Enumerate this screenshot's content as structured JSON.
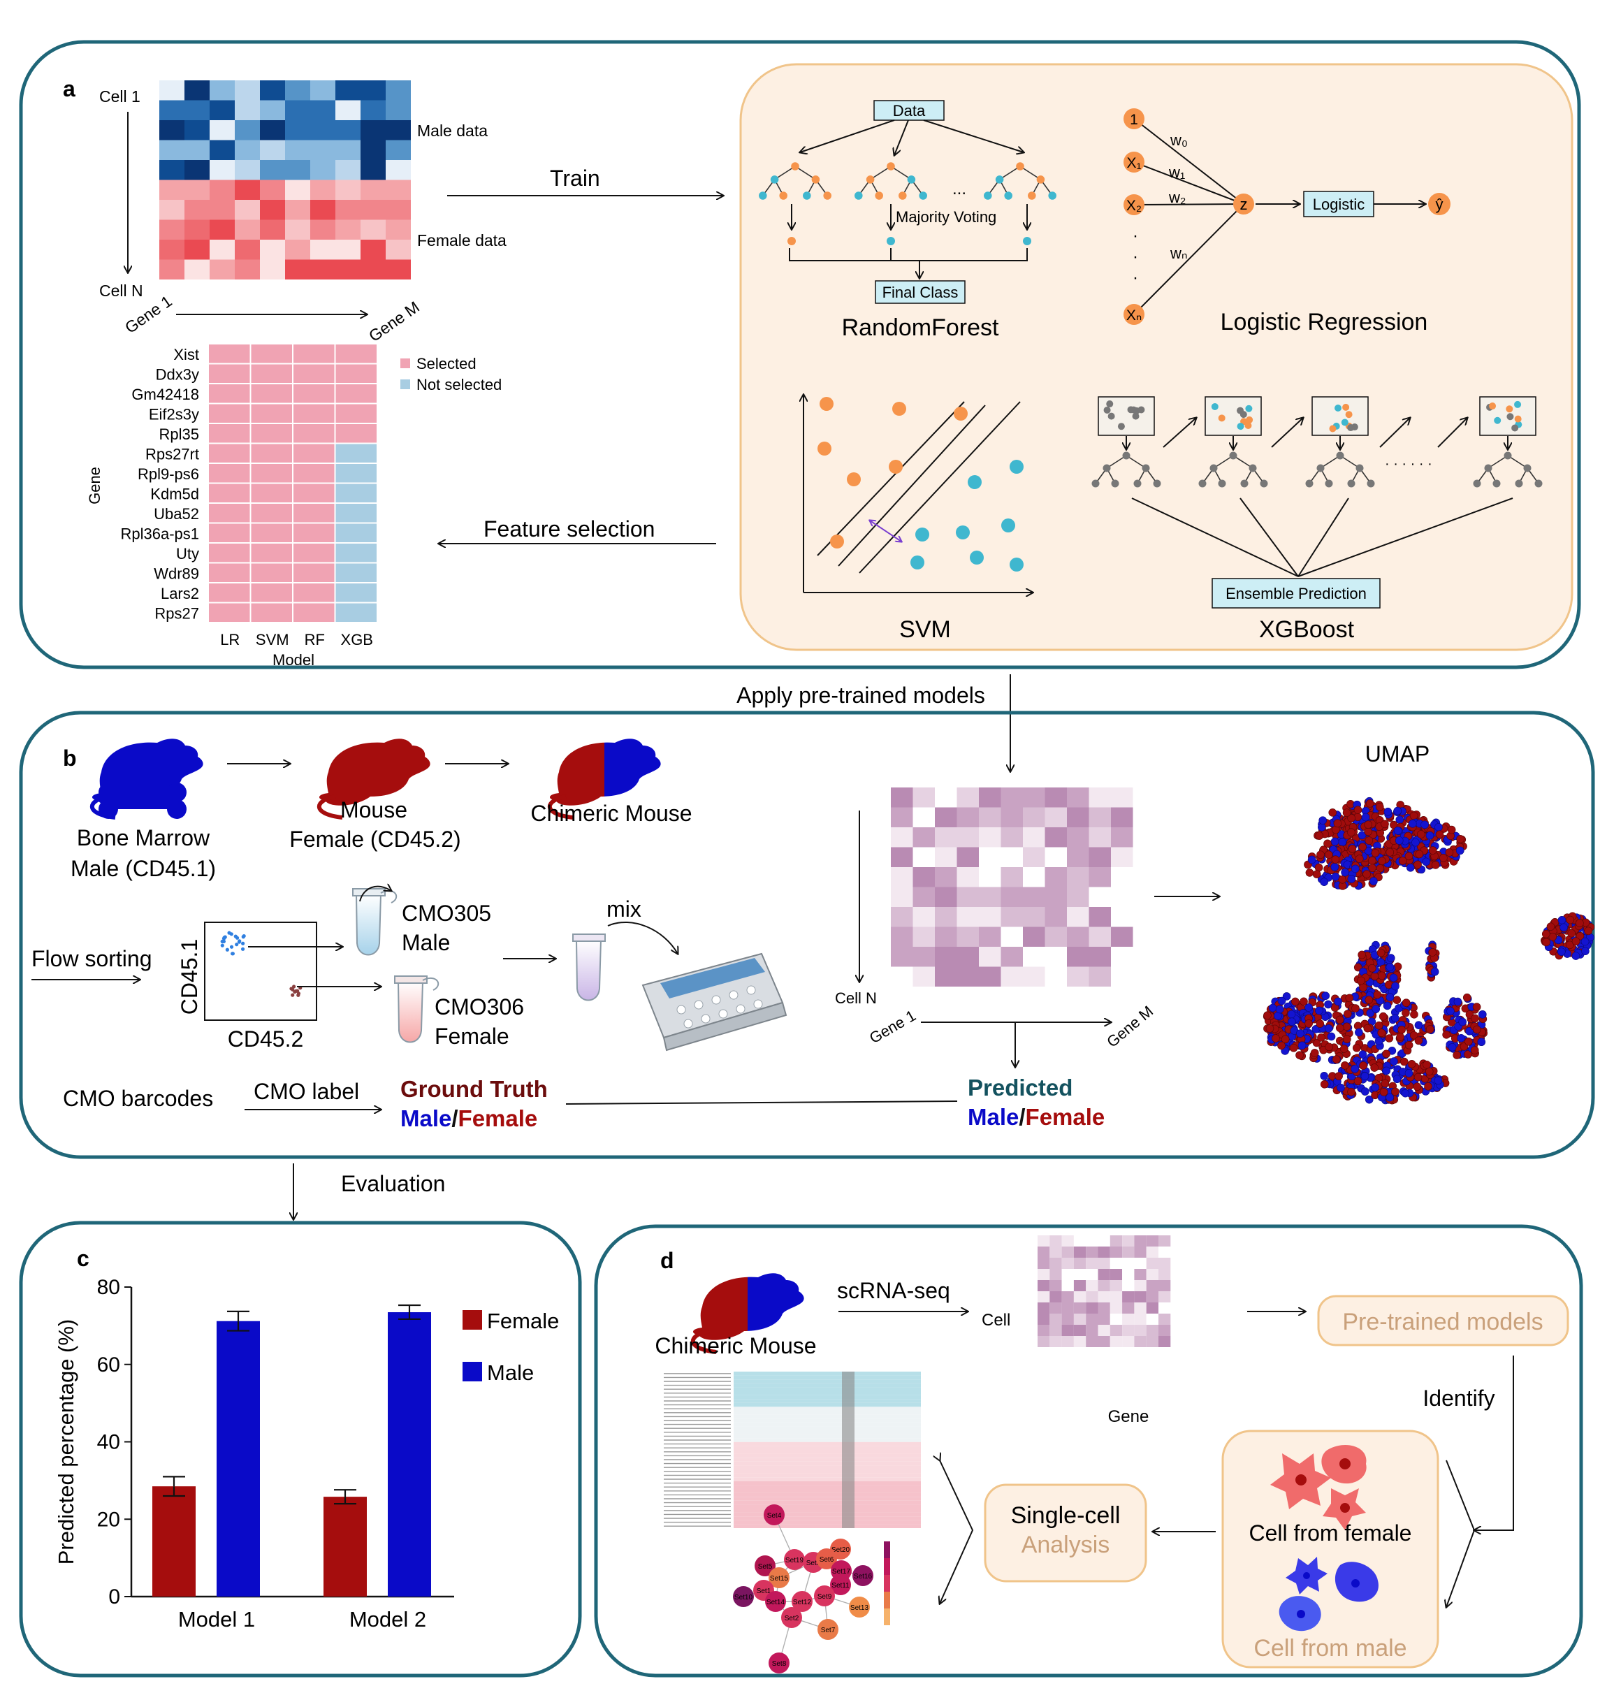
{
  "panel_a": {
    "label": "a",
    "cell_first": "Cell 1",
    "cell_last": "Cell N",
    "gene_first": "Gene 1",
    "gene_last": "Gene M",
    "male_data": "Male data",
    "female_data": "Female data",
    "train": "Train",
    "feature_selection": "Feature selection",
    "genes": [
      "Xist",
      "Ddx3y",
      "Gm42418",
      "Eif2s3y",
      "Rpl35",
      "Rps27rt",
      "Rpl9-ps6",
      "Kdm5d",
      "Uba52",
      "Rpl36a-ps1",
      "Uty",
      "Wdr89",
      "Lars2",
      "Rps27"
    ],
    "models": [
      "LR",
      "SVM",
      "RF",
      "XGB"
    ],
    "gene_axis": "Gene",
    "model_axis": "Model",
    "legend_selected": "Selected",
    "legend_not_selected": "Not selected",
    "selected_color": "#f0a3b3",
    "not_selected_color": "#a8cde2",
    "xgb_selected_rows": 5,
    "rf_title": "RandomForest",
    "rf_data": "Data",
    "rf_majority": "Majority Voting",
    "rf_final": "Final Class",
    "rf_ellipsis": "...",
    "lr_title": "Logistic Regression",
    "lr_inputs": [
      "1",
      "X₁",
      "X₂",
      "Xₙ"
    ],
    "lr_weights": [
      "w₀",
      "w₁",
      "w₂",
      "wₙ"
    ],
    "lr_z": "z",
    "lr_logistic": "Logistic",
    "lr_output": "ŷ",
    "svm_title": "SVM",
    "xgb_title": "XGBoost",
    "xgb_ensemble": "Ensemble Prediction",
    "xgb_dots": "· · · · · ·"
  },
  "between_ab": "Apply pre-trained models",
  "panel_b": {
    "label": "b",
    "bone_marrow": "Bone Marrow",
    "male_cd451": "Male (CD45.1)",
    "mouse": "Mouse",
    "female_cd452": "Female (CD45.2)",
    "chimeric": "Chimeric Mouse",
    "flow_sorting": "Flow sorting",
    "cd451": "CD45.1",
    "cd452": "CD45.2",
    "cmo305": "CMO305",
    "cmo305_sex": "Male",
    "cmo306": "CMO306",
    "cmo306_sex": "Female",
    "mix": "mix",
    "cmo_barcodes": "CMO barcodes",
    "cmo_label": "CMO label",
    "ground_truth": "Ground Truth",
    "predicted": "Predicted",
    "male": "Male",
    "slash": "/",
    "female": "Female",
    "cell_n": "Cell N",
    "gene_first": "Gene 1",
    "gene_last": "Gene M",
    "umap": "UMAP"
  },
  "evaluation": "Evaluation",
  "colors": {
    "frame": "#1f6678",
    "peach_fill": "#fdf0e3",
    "peach_stroke": "#f0c48a",
    "female": "#a50d0d",
    "male": "#0a0ac8",
    "orange_dot": "#f6944b",
    "teal_dot": "#3fb7cf",
    "ground_truth": "#6b0c0c",
    "predicted": "#14525f"
  },
  "panel_c": {
    "label": "c",
    "chart_data": {
      "type": "bar",
      "categories": [
        "Model 1",
        "Model 2"
      ],
      "series": [
        {
          "name": "Female",
          "values": [
            28.5,
            25.8
          ],
          "errors": [
            2.5,
            1.8
          ],
          "color": "#a50d0d"
        },
        {
          "name": "Male",
          "values": [
            71.2,
            73.5
          ],
          "errors": [
            2.5,
            1.8
          ],
          "color": "#0a0ac8"
        }
      ],
      "ylabel": "Predicted percentage (%)",
      "ylim": [
        0,
        80
      ],
      "yticks": [
        0,
        20,
        40,
        60,
        80
      ],
      "legend": "top-right",
      "grid": false
    }
  },
  "panel_d": {
    "label": "d",
    "chimeric": "Chimeric Mouse",
    "scrna": "scRNA-seq",
    "cell": "Cell",
    "gene": "Gene",
    "pretrained": "Pre-trained models",
    "identify": "Identify",
    "cell_female": "Cell from female",
    "cell_male": "Cell from male",
    "single_cell": "Single-cell",
    "analysis": "Analysis",
    "network_nodes": [
      "Set4",
      "Set20",
      "Set19",
      "Set5",
      "Set3",
      "Set6",
      "Set17",
      "Set15",
      "Set16",
      "Set11",
      "Set1",
      "Set10",
      "Set14",
      "Set12",
      "Set13",
      "Set9",
      "Set2",
      "Set7",
      "Set8"
    ]
  }
}
